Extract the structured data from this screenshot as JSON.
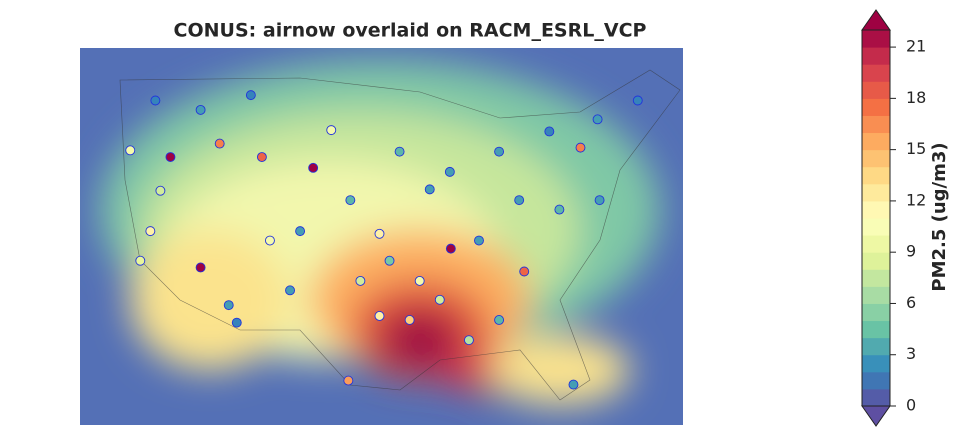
{
  "chart_data": {
    "type": "scatter",
    "title": "CONUS: airnow overlaid on RACM_ESRL_VCP",
    "colorbar_label": "PM2.5 (ug/m3)",
    "x": [
      -117.0,
      -112.1,
      -102.8,
      -114.0,
      -89.1,
      -81.8,
      -76.2,
      -99.3,
      -107.9,
      -111.2,
      -110.4,
      -105.1,
      -96.2,
      -93.2,
      -90.2,
      -87.3,
      -84.3,
      -76.9,
      -119.0,
      -120.0,
      -118.0,
      -121.0,
      -118.5,
      -114.0,
      -109.0,
      -101.0,
      -94.2,
      -89.2,
      -84.3,
      -79.3,
      -74.5,
      -70.5,
      -82.3,
      -78.3,
      -74.3,
      -99.1,
      -104.1,
      -107.1,
      -95.2,
      -92.2,
      -86.3,
      -98.1,
      -91.2,
      -96.2
    ],
    "y": [
      42.9,
      43.9,
      42.1,
      34.7,
      36.1,
      34.4,
      43.6,
      26.3,
      42.9,
      31.9,
      30.6,
      33.0,
      31.1,
      30.8,
      32.3,
      29.3,
      30.8,
      26.0,
      37.4,
      35.2,
      40.4,
      43.4,
      47.1,
      46.4,
      47.5,
      44.9,
      43.3,
      41.8,
      43.3,
      44.8,
      45.7,
      47.1,
      39.7,
      39.0,
      39.7,
      39.7,
      37.4,
      36.7,
      35.2,
      33.7,
      36.7,
      33.7,
      40.5,
      37.2
    ],
    "values": [
      22,
      17,
      22,
      22,
      22,
      18,
      17,
      16,
      18,
      3,
      2,
      3,
      12,
      14,
      8,
      7,
      4,
      3,
      12,
      9,
      8,
      10,
      2,
      3,
      2,
      10,
      4,
      3,
      3,
      2,
      3,
      2,
      3,
      4,
      3,
      4,
      3,
      10,
      5,
      10,
      3,
      8,
      3,
      12
    ],
    "xlim": [
      -126,
      -66
    ],
    "ylim": [
      23,
      51
    ],
    "clim": [
      0,
      22
    ],
    "cticks": [
      0,
      3,
      6,
      9,
      12,
      15,
      18,
      21
    ],
    "colormap": [
      "#5e4fa2",
      "#3288bd",
      "#66c2a5",
      "#abdda4",
      "#e6f598",
      "#ffffbf",
      "#fee08b",
      "#fdae61",
      "#f46d43",
      "#d53e4f",
      "#9e0142"
    ],
    "marker_edge_color": "#2233dd"
  }
}
